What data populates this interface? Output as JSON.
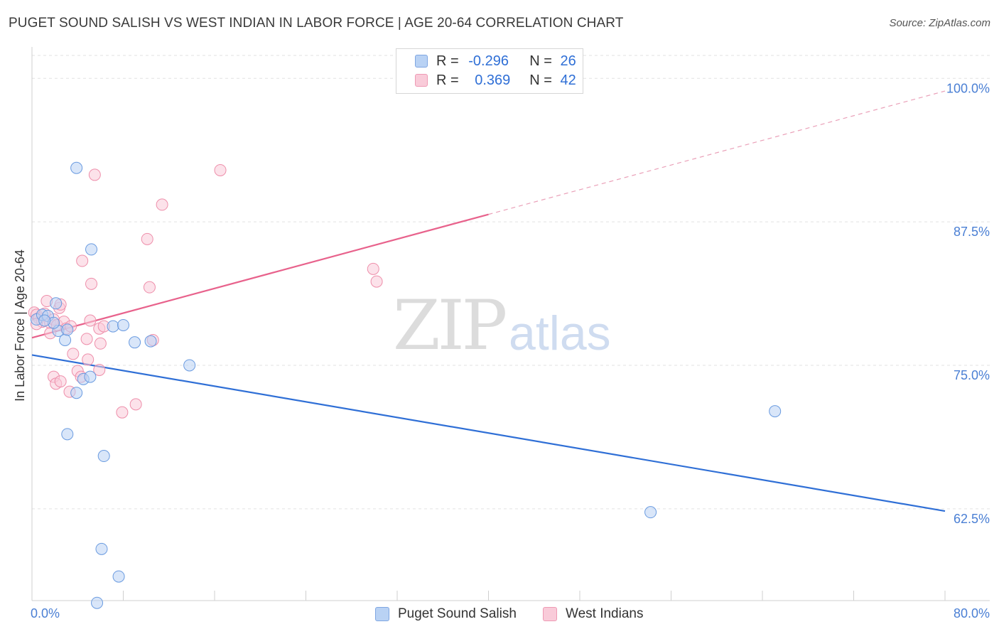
{
  "header": {
    "title": "PUGET SOUND SALISH VS WEST INDIAN IN LABOR FORCE | AGE 20-64 CORRELATION CHART",
    "source": "Source: ZipAtlas.com"
  },
  "watermark": {
    "zip": "ZIP",
    "atlas": "atlas"
  },
  "legend": {
    "rows": [
      {
        "r_label": "R = ",
        "r_value": "-0.296",
        "n_label": "N = ",
        "n_value": "26",
        "color": "#a9c6f0"
      },
      {
        "r_label": "R = ",
        "r_value": "0.369",
        "n_label": "N = ",
        "n_value": "42",
        "color": "#f7b8cc"
      }
    ]
  },
  "bottom_legend": {
    "series1": "Puget Sound Salish",
    "series2": "West Indians"
  },
  "chart_data": {
    "type": "scatter",
    "title": "PUGET SOUND SALISH VS WEST INDIAN IN LABOR FORCE | AGE 20-64 CORRELATION CHART",
    "xlabel": "",
    "ylabel": "In Labor Force | Age 20-64",
    "xlim": [
      0,
      80
    ],
    "ylim": [
      54.5,
      102
    ],
    "x_tick_labels": [
      "0.0%",
      "80.0%"
    ],
    "y_ticks": [
      62.5,
      75.0,
      87.5,
      100.0
    ],
    "y_tick_labels": [
      "62.5%",
      "75.0%",
      "87.5%",
      "100.0%"
    ],
    "grid": "horizontal dashed",
    "legend_position": "top-center",
    "series": [
      {
        "name": "Puget Sound Salish",
        "color": "#6a9be0",
        "fill": "#b9d2f4",
        "r": -0.296,
        "n": 26,
        "trend": {
          "x": [
            0,
            80
          ],
          "y": [
            75.9,
            62.3
          ],
          "dashed_from": null
        },
        "points": [
          [
            0.4,
            79.0
          ],
          [
            0.9,
            79.4
          ],
          [
            1.4,
            79.3
          ],
          [
            2.1,
            80.4
          ],
          [
            2.3,
            78.0
          ],
          [
            2.9,
            77.2
          ],
          [
            3.9,
            92.2
          ],
          [
            5.2,
            85.1
          ],
          [
            7.1,
            78.4
          ],
          [
            8.0,
            78.5
          ],
          [
            9.0,
            77.0
          ],
          [
            10.4,
            77.1
          ],
          [
            13.8,
            75.0
          ],
          [
            1.9,
            78.7
          ],
          [
            1.1,
            78.9
          ],
          [
            3.1,
            78.1
          ],
          [
            4.5,
            73.8
          ],
          [
            3.9,
            72.6
          ],
          [
            5.1,
            74.0
          ],
          [
            3.1,
            69.0
          ],
          [
            6.3,
            67.1
          ],
          [
            6.1,
            59.0
          ],
          [
            7.6,
            56.6
          ],
          [
            5.7,
            54.3
          ],
          [
            54.2,
            62.2
          ],
          [
            65.1,
            71.0
          ]
        ]
      },
      {
        "name": "West Indians",
        "color": "#ee8eaa",
        "fill": "#f9cbd9",
        "r": 0.369,
        "n": 42,
        "trend": {
          "x": [
            0,
            80
          ],
          "y": [
            77.4,
            98.9
          ],
          "dashed_from": 40
        },
        "points": [
          [
            0.2,
            79.6
          ],
          [
            0.4,
            79.4
          ],
          [
            0.6,
            79.1
          ],
          [
            0.9,
            78.8
          ],
          [
            1.1,
            79.5
          ],
          [
            1.3,
            80.6
          ],
          [
            1.6,
            78.7
          ],
          [
            1.9,
            79.0
          ],
          [
            2.2,
            78.5
          ],
          [
            2.4,
            80.0
          ],
          [
            2.5,
            80.3
          ],
          [
            2.8,
            78.8
          ],
          [
            3.0,
            78.2
          ],
          [
            3.4,
            78.4
          ],
          [
            3.6,
            76.0
          ],
          [
            4.0,
            74.5
          ],
          [
            4.3,
            74.0
          ],
          [
            4.4,
            84.1
          ],
          [
            4.8,
            77.3
          ],
          [
            4.9,
            75.5
          ],
          [
            5.1,
            78.9
          ],
          [
            5.5,
            91.6
          ],
          [
            5.2,
            82.1
          ],
          [
            5.9,
            78.2
          ],
          [
            6.0,
            76.9
          ],
          [
            6.3,
            78.4
          ],
          [
            1.6,
            77.8
          ],
          [
            1.9,
            74.0
          ],
          [
            2.1,
            73.4
          ],
          [
            2.5,
            73.6
          ],
          [
            3.3,
            72.7
          ],
          [
            5.9,
            74.6
          ],
          [
            7.9,
            70.9
          ],
          [
            9.1,
            71.6
          ],
          [
            10.1,
            86.0
          ],
          [
            10.3,
            81.8
          ],
          [
            10.6,
            77.2
          ],
          [
            11.4,
            89.0
          ],
          [
            16.5,
            92.0
          ],
          [
            29.9,
            83.4
          ],
          [
            30.2,
            82.3
          ],
          [
            0.4,
            78.6
          ]
        ]
      }
    ]
  }
}
